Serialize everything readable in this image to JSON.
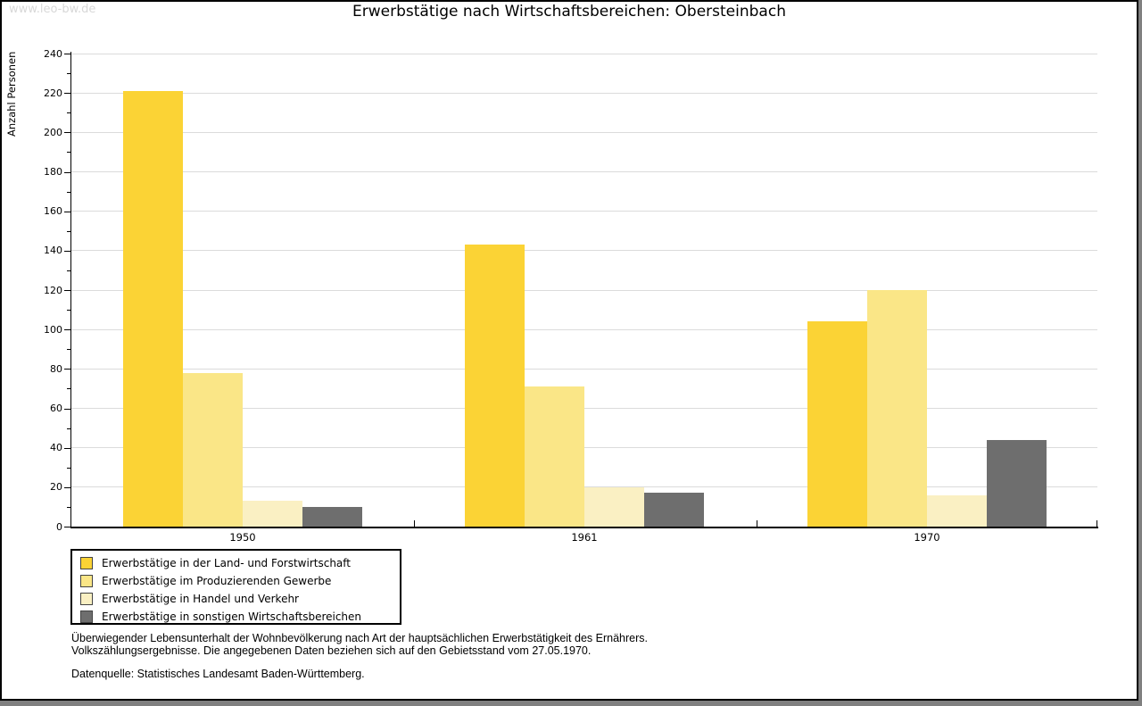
{
  "watermark": "www.leo-bw.de",
  "chart_data": {
    "type": "bar",
    "title": "Erwerbstätige nach Wirtschaftsbereichen: Obersteinbach",
    "xlabel": "",
    "ylabel": "Anzahl Personen",
    "ylim": [
      0,
      240
    ],
    "ytick_step": 20,
    "ytick_minor_step": 10,
    "grid": "horizontal",
    "legend_position": "bottom-left",
    "categories": [
      "1950",
      "1961",
      "1970"
    ],
    "series": [
      {
        "name": "Erwerbstätige in der Land- und Forstwirtschaft",
        "color": "#fbd335",
        "values": [
          221,
          143,
          104
        ]
      },
      {
        "name": "Erwerbstätige im Produzierenden Gewerbe",
        "color": "#fae687",
        "values": [
          78,
          71,
          120
        ]
      },
      {
        "name": "Erwerbstätige in Handel und Verkehr",
        "color": "#faf0c3",
        "values": [
          13,
          20,
          16
        ]
      },
      {
        "name": "Erwerbstätige in sonstigen Wirtschaftsbereichen",
        "color": "#6e6e6e",
        "values": [
          10,
          17,
          44
        ]
      }
    ]
  },
  "footnotes": {
    "line1": "Überwiegender Lebensunterhalt der Wohnbevölkerung nach Art der hauptsächlichen Erwerbstätigkeit des Ernährers.",
    "line2": "Volkszählungsergebnisse. Die angegebenen Daten beziehen sich auf den Gebietsstand vom 27.05.1970.",
    "source": "Datenquelle: Statistisches Landesamt Baden-Württemberg."
  }
}
